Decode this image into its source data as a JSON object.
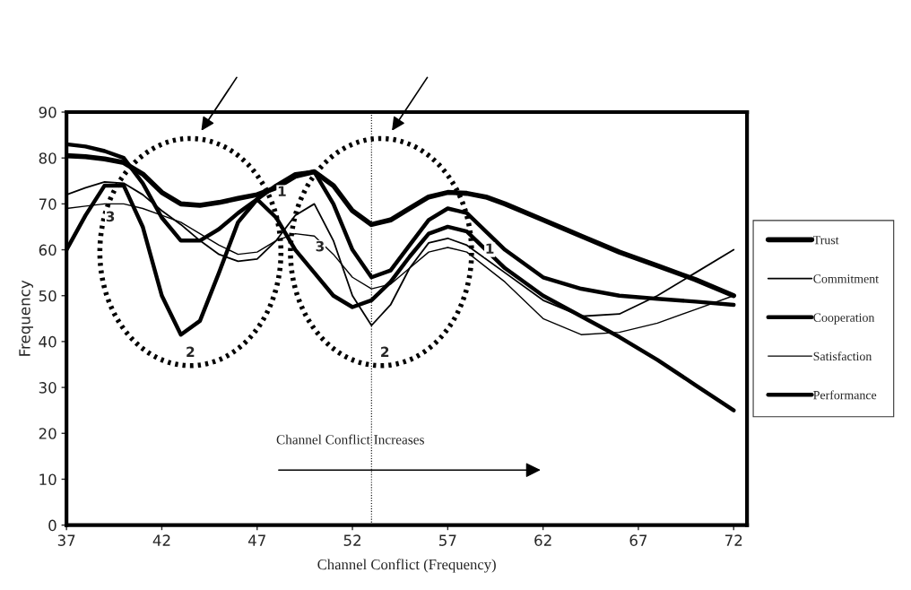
{
  "chart_data": {
    "type": "line",
    "xlabel": "Channel Conflict (Frequency)",
    "ylabel": "Frequency",
    "xlim": [
      37,
      72.7
    ],
    "xticks": [
      37,
      42,
      47,
      52,
      57,
      62,
      67,
      72
    ],
    "ylim": [
      0,
      90
    ],
    "yticks": [
      0,
      10,
      20,
      30,
      40,
      50,
      60,
      70,
      80,
      90
    ],
    "grid": false,
    "legend": "right",
    "marker": "none",
    "line_style": "solid",
    "series": [
      {
        "name": "Trust",
        "color": "#000000",
        "x": [
          37,
          38,
          39,
          40,
          41,
          42,
          43,
          44,
          45,
          46,
          47,
          48,
          49,
          50,
          51,
          52,
          53,
          54,
          55,
          56,
          57,
          58,
          59,
          60,
          62,
          64,
          66,
          68,
          70,
          72
        ],
        "values": [
          80.5,
          80.3,
          79.8,
          79,
          76.5,
          72.5,
          70,
          69.7,
          70.3,
          71.2,
          72,
          73.5,
          76,
          77,
          74,
          68.5,
          65.5,
          66.5,
          69,
          71.5,
          72.5,
          72.3,
          71.5,
          70,
          66.5,
          63,
          59.5,
          56.5,
          53.5,
          50
        ]
      },
      {
        "name": "Commitment",
        "color": "#000000",
        "x": [
          37,
          38,
          39,
          40,
          41,
          42,
          43,
          44,
          45,
          46,
          47,
          48,
          49,
          50,
          51,
          52,
          53,
          54,
          55,
          56,
          57,
          58,
          60,
          62,
          64,
          66,
          68,
          70,
          72
        ],
        "values": [
          72,
          73.5,
          74.8,
          74.5,
          72,
          68.5,
          65.5,
          62,
          59,
          57.5,
          58,
          62,
          67.5,
          70,
          62,
          50,
          43.5,
          48,
          56,
          61.5,
          62.5,
          61,
          55,
          49,
          45.5,
          46,
          50,
          55,
          60
        ]
      },
      {
        "name": "Cooperation",
        "color": "#000000",
        "x": [
          37,
          38,
          39,
          40,
          41,
          42,
          43,
          44,
          45,
          46,
          47,
          48,
          49,
          50,
          51,
          52,
          53,
          54,
          55,
          56,
          57,
          58,
          59,
          60,
          62,
          64,
          66,
          68,
          70,
          72
        ],
        "values": [
          83,
          82.5,
          81.5,
          80,
          74.5,
          67,
          62,
          62,
          64.5,
          68,
          71,
          74,
          76.5,
          77,
          70,
          60,
          54,
          55.5,
          61,
          66.5,
          69,
          68,
          64,
          60,
          54,
          51.5,
          50,
          49.3,
          48.7,
          48
        ]
      },
      {
        "name": "Satisfaction",
        "color": "#000000",
        "x": [
          37,
          38,
          39,
          40,
          41,
          42,
          43,
          44,
          45,
          46,
          47,
          48,
          49,
          50,
          51,
          52,
          53,
          54,
          55,
          56,
          57,
          58,
          60,
          62,
          64,
          66,
          68,
          70,
          72
        ],
        "values": [
          69,
          69.5,
          70,
          70,
          69,
          67.5,
          66,
          63.5,
          61,
          59,
          59.5,
          62,
          63.5,
          63,
          59,
          54,
          51.5,
          52.5,
          56,
          59.5,
          60.5,
          59.5,
          53,
          45,
          41.5,
          42,
          44,
          47,
          50
        ]
      },
      {
        "name": "Performance",
        "color": "#000000",
        "x": [
          37,
          38,
          39,
          40,
          41,
          42,
          43,
          44,
          45,
          46,
          47,
          48,
          49,
          50,
          51,
          52,
          53,
          54,
          55,
          56,
          57,
          58,
          59,
          60,
          62,
          64,
          66,
          68,
          70,
          72
        ],
        "values": [
          60,
          67.5,
          74,
          74,
          65,
          50,
          41.5,
          44.5,
          55,
          66,
          71,
          67,
          60,
          55,
          50,
          47.5,
          49,
          53,
          58.5,
          63.5,
          65,
          64,
          60,
          56,
          50,
          45.5,
          41,
          36,
          30.5,
          25
        ]
      }
    ],
    "ref_lines": [
      {
        "axis": "x",
        "value": 53,
        "color": "#000000",
        "line_style": "dotted"
      }
    ],
    "annotations": [
      "1",
      "3",
      "2",
      "3",
      "2",
      "1",
      "Channel Conflict Increases"
    ]
  }
}
